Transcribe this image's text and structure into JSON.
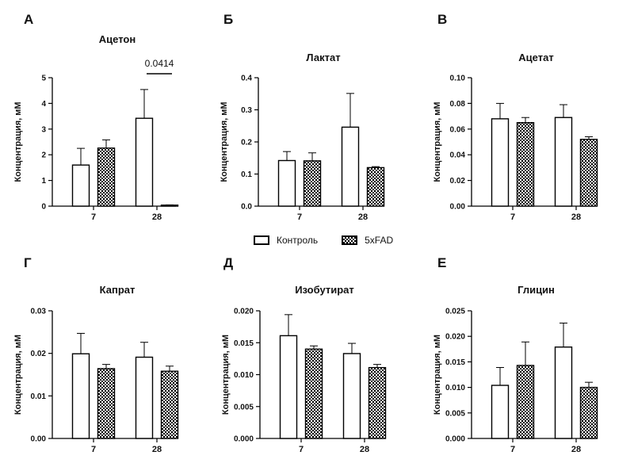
{
  "legend": {
    "control": "Контроль",
    "fad": "5xFAD"
  },
  "colors": {
    "bar_fill_control": "#ffffff",
    "pattern_dark": "#000000",
    "axis": "#000000",
    "text": "#111111"
  },
  "chart_data": [
    {
      "type": "bar",
      "letter": "А",
      "title": "Ацетон",
      "ylabel": "Концентрация, мМ",
      "xlabel": "",
      "categories": [
        "7",
        "28"
      ],
      "ylim": [
        0,
        5
      ],
      "yticks": [
        "0",
        "1",
        "2",
        "3",
        "4",
        "5"
      ],
      "series": [
        {
          "name": "Контроль",
          "values": [
            1.6,
            3.42
          ],
          "errors": [
            0.65,
            1.12
          ]
        },
        {
          "name": "5xFAD",
          "values": [
            2.26,
            0.04
          ],
          "errors": [
            0.32,
            0.01
          ]
        }
      ],
      "annotation": {
        "text": "0.0414",
        "category": "28"
      }
    },
    {
      "type": "bar",
      "letter": "Б",
      "title": "Лактат",
      "ylabel": "Концентрация, мМ",
      "xlabel": "",
      "categories": [
        "7",
        "28"
      ],
      "ylim": [
        0,
        0.4
      ],
      "yticks": [
        "0.0",
        "0.1",
        "0.2",
        "0.3",
        "0.4"
      ],
      "series": [
        {
          "name": "Контроль",
          "values": [
            0.142,
            0.246
          ],
          "errors": [
            0.028,
            0.105
          ]
        },
        {
          "name": "5xFAD",
          "values": [
            0.141,
            0.12
          ],
          "errors": [
            0.025,
            0.003
          ]
        }
      ]
    },
    {
      "type": "bar",
      "letter": "В",
      "title": "Ацетат",
      "ylabel": "Концентрация, мМ",
      "xlabel": "",
      "categories": [
        "7",
        "28"
      ],
      "ylim": [
        0,
        0.1
      ],
      "yticks": [
        "0.00",
        "0.02",
        "0.04",
        "0.06",
        "0.08",
        "0.10"
      ],
      "series": [
        {
          "name": "Контроль",
          "values": [
            0.068,
            0.069
          ],
          "errors": [
            0.012,
            0.01
          ]
        },
        {
          "name": "5xFAD",
          "values": [
            0.065,
            0.052
          ],
          "errors": [
            0.004,
            0.002
          ]
        }
      ]
    },
    {
      "type": "bar",
      "letter": "Г",
      "title": "Капрат",
      "ylabel": "Концентрация, мМ",
      "xlabel": "",
      "categories": [
        "7",
        "28"
      ],
      "ylim": [
        0,
        0.03
      ],
      "yticks": [
        "0.00",
        "0.01",
        "0.02",
        "0.03"
      ],
      "series": [
        {
          "name": "Контроль",
          "values": [
            0.0199,
            0.0191
          ],
          "errors": [
            0.0048,
            0.0035
          ]
        },
        {
          "name": "5xFAD",
          "values": [
            0.0164,
            0.0158
          ],
          "errors": [
            0.001,
            0.0012
          ]
        }
      ]
    },
    {
      "type": "bar",
      "letter": "Д",
      "title": "Изобутират",
      "ylabel": "Концентрация, мМ",
      "xlabel": "",
      "categories": [
        "7",
        "28"
      ],
      "ylim": [
        0,
        0.02
      ],
      "yticks": [
        "0.000",
        "0.005",
        "0.010",
        "0.015",
        "0.020"
      ],
      "series": [
        {
          "name": "Контроль",
          "values": [
            0.0161,
            0.0133
          ],
          "errors": [
            0.0033,
            0.0016
          ]
        },
        {
          "name": "5xFAD",
          "values": [
            0.014,
            0.0111
          ],
          "errors": [
            0.0005,
            0.0005
          ]
        }
      ]
    },
    {
      "type": "bar",
      "letter": "Е",
      "title": "Глицин",
      "ylabel": "Концентрация, мМ",
      "xlabel": "",
      "categories": [
        "7",
        "28"
      ],
      "ylim": [
        0,
        0.025
      ],
      "yticks": [
        "0.000",
        "0.005",
        "0.010",
        "0.015",
        "0.020",
        "0.025"
      ],
      "series": [
        {
          "name": "Контроль",
          "values": [
            0.0104,
            0.0179
          ],
          "errors": [
            0.0035,
            0.0047
          ]
        },
        {
          "name": "5xFAD",
          "values": [
            0.0143,
            0.01
          ],
          "errors": [
            0.0046,
            0.001
          ]
        }
      ]
    }
  ]
}
